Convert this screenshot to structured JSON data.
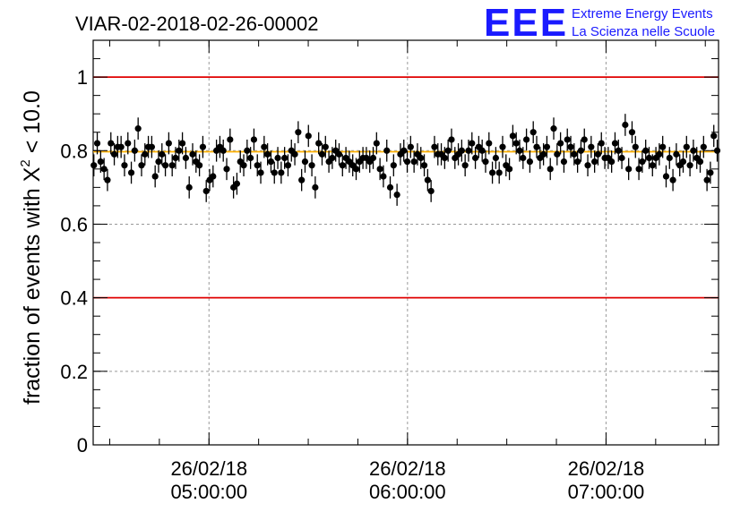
{
  "header": {
    "title": "VIAR-02-2018-02-26-00002",
    "logo_text": "EEE",
    "logo_line1": "Extreme Energy Events",
    "logo_line2": "La Scienza nelle Scuole"
  },
  "colors": {
    "logo": "#1a1aff",
    "limit_lines": "#e00000",
    "mean_line": "#ffb000",
    "markers": "#000000",
    "grid": "#999999"
  },
  "chart_data": {
    "type": "scatter",
    "title": "VIAR-02-2018-02-26-00002",
    "xlabel": "",
    "ylabel_main": "fraction of events with X",
    "ylabel_sup": "2",
    "ylabel_tail": " < 10.0",
    "x_unit": "hours since 26/02/18 04:00:00 (x axis shown as date/time)",
    "xlim": [
      "26/02/18 04:25:00",
      "26/02/18 07:34:00"
    ],
    "ylim": [
      0,
      1.1
    ],
    "y_ticks": [
      0,
      0.2,
      0.4,
      0.6,
      0.8,
      1
    ],
    "y_tick_labels": [
      "0",
      "0.2",
      "0.4",
      "0.6",
      "0.8",
      "1"
    ],
    "x_ticks": [
      "26/02/18 05:00:00",
      "26/02/18 06:00:00",
      "26/02/18 07:00:00"
    ],
    "x_tick_labels": [
      {
        "date": "26/02/18",
        "time": "05:00:00"
      },
      {
        "date": "26/02/18",
        "time": "06:00:00"
      },
      {
        "date": "26/02/18",
        "time": "07:00:00"
      }
    ],
    "grid": true,
    "reference_lines": [
      {
        "y": 1.0,
        "color": "#e00000"
      },
      {
        "y": 0.4,
        "color": "#e00000"
      },
      {
        "y": 0.797,
        "color": "#ffb000"
      }
    ],
    "series": [
      {
        "marker": "circle",
        "error": 0.03,
        "y": [
          0.76,
          0.82,
          0.77,
          0.75,
          0.72,
          0.82,
          0.79,
          0.81,
          0.81,
          0.76,
          0.82,
          0.74,
          0.8,
          0.86,
          0.76,
          0.79,
          0.81,
          0.81,
          0.73,
          0.77,
          0.79,
          0.76,
          0.82,
          0.76,
          0.78,
          0.8,
          0.82,
          0.78,
          0.7,
          0.79,
          0.77,
          0.76,
          0.81,
          0.69,
          0.72,
          0.73,
          0.8,
          0.81,
          0.8,
          0.75,
          0.83,
          0.7,
          0.71,
          0.77,
          0.76,
          0.8,
          0.78,
          0.83,
          0.76,
          0.74,
          0.81,
          0.79,
          0.77,
          0.74,
          0.78,
          0.74,
          0.78,
          0.76,
          0.8,
          0.79,
          0.85,
          0.72,
          0.77,
          0.84,
          0.76,
          0.7,
          0.82,
          0.79,
          0.81,
          0.77,
          0.78,
          0.8,
          0.79,
          0.76,
          0.78,
          0.77,
          0.76,
          0.75,
          0.77,
          0.78,
          0.78,
          0.77,
          0.78,
          0.82,
          0.75,
          0.73,
          0.8,
          0.7,
          0.76,
          0.68,
          0.79,
          0.8,
          0.77,
          0.81,
          0.77,
          0.79,
          0.78,
          0.76,
          0.72,
          0.69,
          0.81,
          0.79,
          0.79,
          0.78,
          0.8,
          0.83,
          0.78,
          0.79,
          0.8,
          0.76,
          0.8,
          0.82,
          0.78,
          0.81,
          0.8,
          0.77,
          0.82,
          0.74,
          0.78,
          0.74,
          0.81,
          0.76,
          0.75,
          0.84,
          0.82,
          0.8,
          0.78,
          0.83,
          0.77,
          0.85,
          0.81,
          0.78,
          0.79,
          0.81,
          0.75,
          0.86,
          0.79,
          0.82,
          0.77,
          0.83,
          0.81,
          0.79,
          0.77,
          0.8,
          0.83,
          0.76,
          0.81,
          0.77,
          0.79,
          0.82,
          0.78,
          0.78,
          0.77,
          0.82,
          0.8,
          0.78,
          0.87,
          0.75,
          0.85,
          0.81,
          0.75,
          0.77,
          0.8,
          0.78,
          0.76,
          0.78,
          0.79,
          0.81,
          0.73,
          0.78,
          0.72,
          0.79,
          0.76,
          0.77,
          0.81,
          0.76,
          0.8,
          0.78,
          0.77,
          0.81,
          0.72,
          0.74,
          0.84,
          0.8
        ]
      }
    ]
  }
}
